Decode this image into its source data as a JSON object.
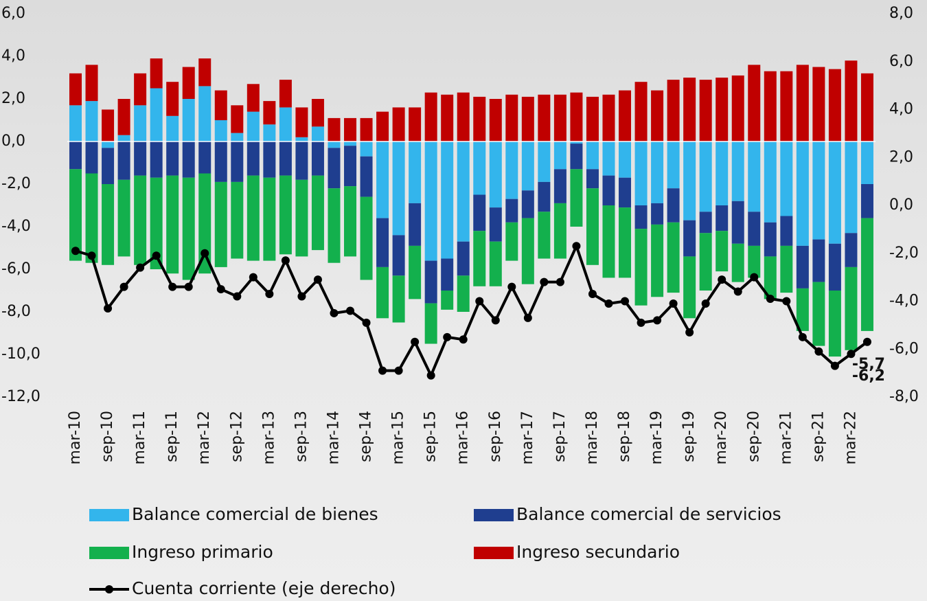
{
  "chart_data": {
    "type": "bar",
    "categories": [
      "mar-10",
      null,
      "sep-10",
      null,
      "mar-11",
      null,
      "sep-11",
      null,
      "mar-12",
      null,
      "sep-12",
      null,
      "mar-13",
      null,
      "sep-13",
      null,
      "mar-14",
      null,
      "sep-14",
      null,
      "mar-15",
      null,
      "sep-15",
      null,
      "mar-16",
      null,
      "sep-16",
      null,
      "mar-17",
      null,
      "sep-17",
      null,
      "mar-18",
      null,
      "sep-18",
      null,
      "mar-19",
      null,
      "sep-19",
      null,
      "mar-20",
      null,
      "sep-20",
      null,
      "mar-21",
      null,
      "sep-21",
      null,
      "mar-22",
      null
    ],
    "stacked": true,
    "series": [
      {
        "name": "Balance comercial de bienes",
        "color": "#33b5ec",
        "values": [
          1.7,
          1.9,
          -0.3,
          0.3,
          1.7,
          2.5,
          1.2,
          2.0,
          2.6,
          1.0,
          0.4,
          1.4,
          0.8,
          1.6,
          0.2,
          0.7,
          -0.3,
          -0.2,
          -0.7,
          -3.6,
          -4.4,
          -2.9,
          -5.6,
          -5.5,
          -4.7,
          -2.5,
          -3.1,
          -2.7,
          -2.3,
          -1.9,
          -1.3,
          -0.1,
          -1.3,
          -1.6,
          -1.7,
          -3.0,
          -2.9,
          -2.2,
          -3.7,
          -3.3,
          -3.0,
          -2.8,
          -3.3,
          -3.8,
          -3.5,
          -4.9,
          -4.6,
          -4.8,
          -4.3,
          -2.0
        ]
      },
      {
        "name": "Balance comercial de servicios",
        "color": "#1f3e8f",
        "values": [
          -1.3,
          -1.5,
          -1.7,
          -1.8,
          -1.6,
          -1.7,
          -1.6,
          -1.7,
          -1.5,
          -1.9,
          -1.9,
          -1.6,
          -1.7,
          -1.6,
          -1.8,
          -1.6,
          -1.9,
          -1.9,
          -1.9,
          -2.3,
          -1.9,
          -2.0,
          -2.0,
          -1.5,
          -1.6,
          -1.7,
          -1.6,
          -1.1,
          -1.3,
          -1.4,
          -1.6,
          -1.2,
          -0.9,
          -1.4,
          -1.4,
          -1.1,
          -1.0,
          -1.6,
          -1.7,
          -1.0,
          -1.2,
          -2.0,
          -1.6,
          -1.6,
          -1.4,
          -2.0,
          -2.0,
          -2.2,
          -1.6,
          -1.6
        ]
      },
      {
        "name": "Ingreso primario",
        "color": "#13b04d",
        "values": [
          -4.3,
          -4.2,
          -3.8,
          -3.6,
          -4.2,
          -4.3,
          -4.6,
          -4.8,
          -4.7,
          -4.0,
          -3.6,
          -4.0,
          -3.9,
          -3.7,
          -3.6,
          -3.5,
          -3.5,
          -3.3,
          -3.9,
          -2.4,
          -2.2,
          -2.5,
          -1.9,
          -0.9,
          -1.7,
          -2.6,
          -2.1,
          -1.8,
          -3.1,
          -2.2,
          -2.6,
          -2.7,
          -3.6,
          -3.4,
          -3.3,
          -3.6,
          -3.4,
          -3.3,
          -2.9,
          -2.7,
          -1.9,
          -1.8,
          -1.5,
          -2.0,
          -2.2,
          -2.0,
          -3.0,
          -3.1,
          -3.9,
          -5.3
        ]
      },
      {
        "name": "Ingreso secundario",
        "color": "#c00000",
        "values": [
          1.5,
          1.7,
          1.5,
          1.7,
          1.5,
          1.4,
          1.6,
          1.5,
          1.3,
          1.4,
          1.3,
          1.3,
          1.1,
          1.3,
          1.4,
          1.3,
          1.1,
          1.1,
          1.1,
          1.4,
          1.6,
          1.6,
          2.3,
          2.2,
          2.3,
          2.1,
          2.0,
          2.2,
          2.1,
          2.2,
          2.2,
          2.3,
          2.1,
          2.2,
          2.4,
          2.8,
          2.4,
          2.9,
          3.0,
          2.9,
          3.0,
          3.1,
          3.6,
          3.3,
          3.3,
          3.6,
          3.5,
          3.4,
          3.8,
          3.2
        ]
      },
      {
        "name": "Cuenta corriente (eje derecho)",
        "type": "line",
        "axis": "y2",
        "color": "#000000",
        "values": [
          -1.9,
          -2.1,
          -4.3,
          -3.4,
          -2.6,
          -2.1,
          -3.4,
          -3.4,
          -2.0,
          -3.5,
          -3.8,
          -3.0,
          -3.7,
          -2.3,
          -3.8,
          -3.1,
          -4.5,
          -4.4,
          -4.9,
          -6.9,
          -6.9,
          -5.7,
          -7.1,
          -5.5,
          -5.6,
          -4.0,
          -4.8,
          -3.4,
          -4.7,
          -3.2,
          -3.2,
          -1.7,
          -3.7,
          -4.1,
          -4.0,
          -4.9,
          -4.8,
          -4.1,
          -5.3,
          -4.1,
          -3.1,
          -3.6,
          -3.0,
          -3.9,
          -4.0,
          -5.5,
          -6.1,
          -6.7,
          -6.2,
          -5.7
        ],
        "value_labels": [
          null,
          null,
          null,
          null,
          null,
          null,
          null,
          null,
          null,
          null,
          null,
          null,
          null,
          null,
          null,
          null,
          null,
          null,
          null,
          null,
          null,
          null,
          null,
          null,
          null,
          null,
          null,
          null,
          null,
          null,
          null,
          null,
          null,
          null,
          null,
          null,
          null,
          null,
          null,
          null,
          null,
          null,
          null,
          null,
          null,
          null,
          null,
          null,
          "-6,2",
          "-5,7"
        ]
      }
    ],
    "ylim": [
      -12,
      6
    ],
    "yticks": [
      {
        "value": 6,
        "label": "6,0"
      },
      {
        "value": 4,
        "label": "4,0"
      },
      {
        "value": 2,
        "label": "2,0"
      },
      {
        "value": 0,
        "label": "0,0"
      },
      {
        "value": -2,
        "label": "-2,0"
      },
      {
        "value": -4,
        "label": "-4,0"
      },
      {
        "value": -6,
        "label": "-6,0"
      },
      {
        "value": -8,
        "label": "-8,0"
      },
      {
        "value": -10,
        "label": "-10,0"
      },
      {
        "value": -12,
        "label": "-12,0"
      }
    ],
    "y2lim": [
      -8,
      8
    ],
    "y2ticks": [
      {
        "value": 8,
        "label": "8,0"
      },
      {
        "value": 6,
        "label": "6,0"
      },
      {
        "value": 4,
        "label": "4,0"
      },
      {
        "value": 2,
        "label": "2,0"
      },
      {
        "value": 0,
        "label": "0,0"
      },
      {
        "value": -2,
        "label": "-2,0"
      },
      {
        "value": -4,
        "label": "-4,0"
      },
      {
        "value": -6,
        "label": "-6,0"
      },
      {
        "value": -8,
        "label": "-8,0"
      }
    ],
    "grid": false,
    "legend": "bottom"
  }
}
